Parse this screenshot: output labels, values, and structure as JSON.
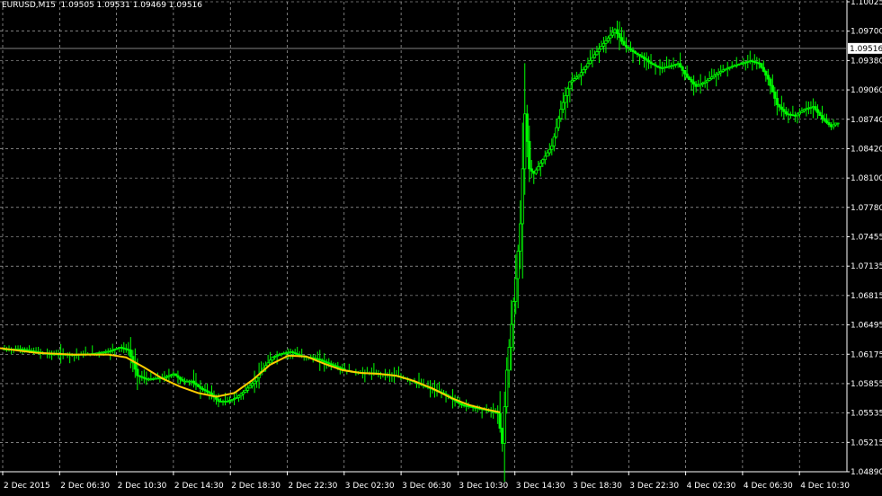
{
  "header": {
    "symbol_line": "EURUSD,M15  1.09505 1.09531 1.09469 1.09516"
  },
  "colors": {
    "background": "#000000",
    "grid": "#c8c8c8",
    "candle": "#00ff00",
    "moving_average": "#ffcc00",
    "axis": "#ffffff",
    "price_line": "#808080"
  },
  "chart_data": {
    "type": "candlestick",
    "symbol": "EURUSD",
    "timeframe": "M15",
    "ohlc_last": {
      "open": 1.09505,
      "high": 1.09531,
      "low": 1.09469,
      "close": 1.09516
    },
    "current_price_label": "1.09516",
    "ylim": [
      1.0489,
      1.10025
    ],
    "y_ticks": [
      "1.10025",
      "1.09700",
      "1.09380",
      "1.09060",
      "1.08740",
      "1.08420",
      "1.08100",
      "1.07780",
      "1.07455",
      "1.07135",
      "1.06815",
      "1.06495",
      "1.06175",
      "1.05855",
      "1.05535",
      "1.05215",
      "1.04890"
    ],
    "x_ticks": [
      "2 Dec 2015",
      "2 Dec 06:30",
      "2 Dec 10:30",
      "2 Dec 14:30",
      "2 Dec 18:30",
      "2 Dec 22:30",
      "3 Dec 02:30",
      "3 Dec 06:30",
      "3 Dec 10:30",
      "3 Dec 14:30",
      "3 Dec 18:30",
      "3 Dec 22:30",
      "4 Dec 02:30",
      "4 Dec 06:30",
      "4 Dec 10:30"
    ],
    "grid": true,
    "price_path": [
      [
        0,
        1.0623
      ],
      [
        2,
        1.0623
      ],
      [
        5,
        1.0618
      ],
      [
        8,
        1.0617
      ],
      [
        10,
        1.0618
      ],
      [
        12,
        1.0621
      ],
      [
        13,
        1.0625
      ],
      [
        14,
        1.0622
      ],
      [
        15,
        1.0594
      ],
      [
        16,
        1.059
      ],
      [
        18,
        1.0592
      ],
      [
        19,
        1.0596
      ],
      [
        20,
        1.0588
      ],
      [
        21,
        1.0588
      ],
      [
        22,
        1.058
      ],
      [
        23,
        1.0575
      ],
      [
        24,
        1.0566
      ],
      [
        25,
        1.0566
      ],
      [
        26,
        1.057
      ],
      [
        27,
        1.0578
      ],
      [
        28,
        1.0588
      ],
      [
        29,
        1.0602
      ],
      [
        30,
        1.0614
      ],
      [
        31,
        1.0618
      ],
      [
        32,
        1.062
      ],
      [
        33,
        1.0616
      ],
      [
        34,
        1.0614
      ],
      [
        35,
        1.0612
      ],
      [
        36,
        1.0608
      ],
      [
        37,
        1.0604
      ],
      [
        38,
        1.06
      ],
      [
        39,
        1.0598
      ],
      [
        40,
        1.0597
      ],
      [
        41,
        1.0597
      ],
      [
        42,
        1.0596
      ],
      [
        43,
        1.0595
      ],
      [
        44,
        1.0593
      ],
      [
        45,
        1.059
      ],
      [
        46,
        1.0586
      ],
      [
        47,
        1.0582
      ],
      [
        48,
        1.0578
      ],
      [
        49,
        1.0574
      ],
      [
        50,
        1.0568
      ],
      [
        51,
        1.0562
      ],
      [
        52,
        1.056
      ],
      [
        53,
        1.0558
      ],
      [
        54,
        1.0556
      ],
      [
        55,
        1.0553
      ],
      [
        55.5,
        1.052
      ],
      [
        56,
        1.06
      ],
      [
        56.5,
        1.065
      ],
      [
        57,
        1.07
      ],
      [
        57.5,
        1.076
      ],
      [
        58,
        1.088
      ],
      [
        58.5,
        1.082
      ],
      [
        59,
        1.0815
      ],
      [
        60,
        1.083
      ],
      [
        61,
        1.0845
      ],
      [
        62,
        1.0885
      ],
      [
        63,
        1.0915
      ],
      [
        64,
        1.0922
      ],
      [
        65,
        1.0935
      ],
      [
        66,
        1.0948
      ],
      [
        67,
        1.096
      ],
      [
        68,
        1.0972
      ],
      [
        69,
        1.0955
      ],
      [
        70,
        1.0948
      ],
      [
        71,
        1.0942
      ],
      [
        72,
        1.0935
      ],
      [
        73,
        1.093
      ],
      [
        74,
        1.0932
      ],
      [
        75,
        1.0935
      ],
      [
        76,
        1.092
      ],
      [
        77,
        1.091
      ],
      [
        78,
        1.0915
      ],
      [
        79,
        1.0922
      ],
      [
        80,
        1.0928
      ],
      [
        81,
        1.0932
      ],
      [
        82,
        1.0935
      ],
      [
        83,
        1.0938
      ],
      [
        84,
        1.0935
      ],
      [
        85,
        1.0918
      ],
      [
        86,
        1.089
      ],
      [
        87,
        1.088
      ],
      [
        88,
        1.0878
      ],
      [
        89,
        1.0885
      ],
      [
        90,
        1.0888
      ],
      [
        91,
        1.0875
      ],
      [
        92,
        1.0866
      ],
      [
        92.5,
        1.087
      ]
    ],
    "moving_average": [
      [
        0,
        1.0624
      ],
      [
        4,
        1.0619
      ],
      [
        8,
        1.0617
      ],
      [
        12,
        1.0617
      ],
      [
        14,
        1.0614
      ],
      [
        16,
        1.0603
      ],
      [
        18,
        1.0591
      ],
      [
        20,
        1.0582
      ],
      [
        22,
        1.0575
      ],
      [
        24,
        1.0571
      ],
      [
        26,
        1.0575
      ],
      [
        28,
        1.0589
      ],
      [
        30,
        1.0606
      ],
      [
        32,
        1.0616
      ],
      [
        34,
        1.0615
      ],
      [
        36,
        1.0607
      ],
      [
        38,
        1.06
      ],
      [
        40,
        1.0597
      ],
      [
        42,
        1.0596
      ],
      [
        44,
        1.0594
      ],
      [
        46,
        1.0588
      ],
      [
        48,
        1.058
      ],
      [
        50,
        1.057
      ],
      [
        52,
        1.0562
      ],
      [
        54,
        1.0557
      ],
      [
        55.5,
        1.0554
      ]
    ]
  }
}
